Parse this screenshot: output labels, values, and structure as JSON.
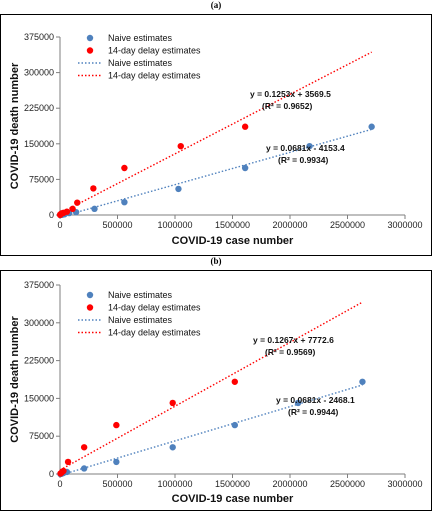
{
  "chart_data": [
    {
      "type": "scatter",
      "panel_label": "(a)",
      "xlabel": "COVID-19 case number",
      "ylabel": "COVID-19 death number",
      "xlim": [
        0,
        3000000
      ],
      "ylim": [
        0,
        375000
      ],
      "x_ticks": [
        "0",
        "500000",
        "1000000",
        "1500000",
        "2000000",
        "2500000",
        "3000000"
      ],
      "y_ticks": [
        "0",
        "75000",
        "150000",
        "225000",
        "300000",
        "375000"
      ],
      "x_tick_values": [
        0,
        500000,
        1000000,
        1500000,
        2000000,
        2500000,
        3000000
      ],
      "y_tick_values": [
        0,
        75000,
        150000,
        225000,
        300000,
        375000
      ],
      "grid": false,
      "legend_position": "top-left",
      "legend": [
        {
          "label": "Naive estimates",
          "kind": "marker",
          "color": "#4f81bd"
        },
        {
          "label": "14-day delay estimates",
          "kind": "marker",
          "color": "#ff0000"
        },
        {
          "label": "Naive estimates",
          "kind": "line",
          "color": "#4f81bd"
        },
        {
          "label": "14-day delay estimates",
          "kind": "line",
          "color": "#ff0000"
        }
      ],
      "series": [
        {
          "name": "Naive estimates",
          "color": "#4f81bd",
          "points": [
            [
              2000,
              50
            ],
            [
              5000,
              150
            ],
            [
              10000,
              300
            ],
            [
              20000,
              600
            ],
            [
              40000,
              1500
            ],
            [
              80000,
              4000
            ],
            [
              140000,
              6000
            ],
            [
              300000,
              13000
            ],
            [
              560000,
              27000
            ],
            [
              1030000,
              55000
            ],
            [
              1610000,
              99000
            ],
            [
              2170000,
              145000
            ],
            [
              2710000,
              186000
            ]
          ],
          "trend": {
            "slope": 0.0681,
            "intercept": -4153.4,
            "x_range": [
              0,
              2710000
            ]
          }
        },
        {
          "name": "14-day delay estimates",
          "color": "#ff0000",
          "points": [
            [
              1000,
              300
            ],
            [
              3000,
              900
            ],
            [
              8000,
              2200
            ],
            [
              15000,
              3500
            ],
            [
              30000,
              4500
            ],
            [
              60000,
              7000
            ],
            [
              110000,
              13000
            ],
            [
              150000,
              26000
            ],
            [
              290000,
              56000
            ],
            [
              560000,
              99000
            ],
            [
              1050000,
              145000
            ],
            [
              1610000,
              186000
            ]
          ],
          "trend": {
            "slope": 0.1253,
            "intercept": 3569.5,
            "x_range": [
              0,
              2710000
            ]
          }
        }
      ],
      "annotations": [
        {
          "line1": "y = 0.1253x + 3569.5",
          "line2": "(R² = 0.9652)"
        },
        {
          "line1": "y = 0.0681x - 4153.4",
          "line2": "(R² = 0.9934)"
        }
      ]
    },
    {
      "type": "scatter",
      "panel_label": "(b)",
      "xlabel": "COVID-19 case number",
      "ylabel": "COVID-19 death number",
      "xlim": [
        0,
        3000000
      ],
      "ylim": [
        0,
        375000
      ],
      "x_ticks": [
        "0",
        "500000",
        "1000000",
        "1500000",
        "2000000",
        "2500000",
        "3000000"
      ],
      "y_ticks": [
        "0",
        "75000",
        "150000",
        "225000",
        "300000",
        "375000"
      ],
      "x_tick_values": [
        0,
        500000,
        1000000,
        1500000,
        2000000,
        2500000,
        3000000
      ],
      "y_tick_values": [
        0,
        75000,
        150000,
        225000,
        300000,
        375000
      ],
      "grid": false,
      "legend_position": "top-left",
      "legend": [
        {
          "label": "Naive estimates",
          "kind": "marker",
          "color": "#4f81bd"
        },
        {
          "label": "14-day delay estimates",
          "kind": "marker",
          "color": "#ff0000"
        },
        {
          "label": "Naive estimates",
          "kind": "line",
          "color": "#4f81bd"
        },
        {
          "label": "14-day delay estimates",
          "kind": "line",
          "color": "#ff0000"
        }
      ],
      "series": [
        {
          "name": "Naive estimates",
          "color": "#4f81bd",
          "points": [
            [
              3000,
              100
            ],
            [
              8000,
              300
            ],
            [
              15000,
              800
            ],
            [
              30000,
              2000
            ],
            [
              60000,
              4000
            ],
            [
              210000,
              11000
            ],
            [
              490000,
              24000
            ],
            [
              980000,
              53000
            ],
            [
              1520000,
              97000
            ],
            [
              2070000,
              141000
            ],
            [
              2630000,
              183000
            ]
          ],
          "trend": {
            "slope": 0.0681,
            "intercept": -2468.1,
            "x_range": [
              0,
              2630000
            ]
          }
        },
        {
          "name": "14-day delay estimates",
          "color": "#ff0000",
          "points": [
            [
              5000,
              1000
            ],
            [
              15000,
              3000
            ],
            [
              30000,
              6000
            ],
            [
              70000,
              24000
            ],
            [
              210000,
              53000
            ],
            [
              490000,
              97000
            ],
            [
              980000,
              141000
            ],
            [
              1520000,
              183000
            ]
          ],
          "trend": {
            "slope": 0.1267,
            "intercept": 7772.6,
            "x_range": [
              0,
              2630000
            ]
          }
        }
      ],
      "annotations": [
        {
          "line1": "y = 0.1267x + 7772.6",
          "line2": "(R² = 0.9569)"
        },
        {
          "line1": "y = 0.0681x - 2468.1",
          "line2": "(R² = 0.9944)"
        }
      ]
    }
  ]
}
